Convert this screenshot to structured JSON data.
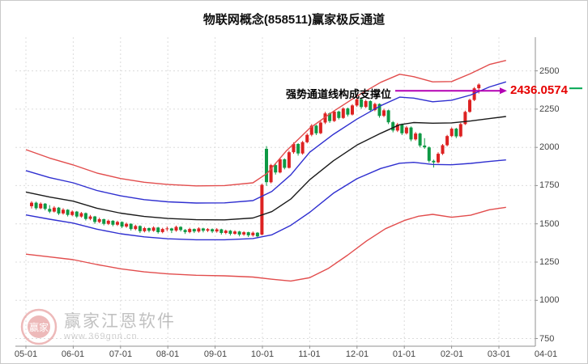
{
  "title": "物联网概念(858511)赢家极反通道",
  "annotation": {
    "text": "强势通道线构成支撑位",
    "value": "2436.0574",
    "level": 2370
  },
  "watermark": {
    "name": "赢家江恩软件",
    "url": "www.369gnn.cn",
    "logo_text": "赢家"
  },
  "colors": {
    "candle_up": "#dd2222",
    "candle_down": "#0e9944",
    "grid": "#dcdcdc",
    "axis": "#909090",
    "arrow": "#b300b3",
    "value_label": "#e60000",
    "marker_green": "#00a651",
    "channel_red": "#e24d4d",
    "channel_blue": "#2f2fd0",
    "channel_black": "#1a1a1a"
  },
  "chart_data": {
    "type": "candlestick",
    "title": "物联网概念(858511)赢家极反通道",
    "x_ticks": [
      "05-01",
      "06-01",
      "07-01",
      "08-01",
      "09-01",
      "10-01",
      "11-01",
      "12-01",
      "01-01",
      "02-01",
      "03-01",
      "04-01"
    ],
    "y_ticks": [
      2500,
      2250,
      2000,
      1750,
      1500,
      1250,
      1000,
      750
    ],
    "ylim": [
      700,
      2720
    ],
    "grid": true,
    "x_start": 0.12,
    "x_step": 0.0955,
    "candles": [
      [
        1615,
        1648,
        1600,
        1638
      ],
      [
        1638,
        1645,
        1592,
        1602
      ],
      [
        1602,
        1640,
        1596,
        1632
      ],
      [
        1632,
        1636,
        1588,
        1598
      ],
      [
        1598,
        1622,
        1570,
        1580
      ],
      [
        1580,
        1616,
        1574,
        1606
      ],
      [
        1606,
        1610,
        1558,
        1568
      ],
      [
        1568,
        1602,
        1560,
        1592
      ],
      [
        1592,
        1596,
        1548,
        1558
      ],
      [
        1558,
        1588,
        1550,
        1580
      ],
      [
        1580,
        1584,
        1538,
        1548
      ],
      [
        1548,
        1578,
        1540,
        1570
      ],
      [
        1570,
        1574,
        1522,
        1532
      ],
      [
        1532,
        1558,
        1524,
        1548
      ],
      [
        1548,
        1552,
        1500,
        1512
      ],
      [
        1512,
        1540,
        1504,
        1530
      ],
      [
        1530,
        1534,
        1490,
        1500
      ],
      [
        1500,
        1528,
        1492,
        1520
      ],
      [
        1520,
        1524,
        1484,
        1494
      ],
      [
        1494,
        1520,
        1486,
        1512
      ],
      [
        1512,
        1516,
        1472,
        1482
      ],
      [
        1482,
        1508,
        1474,
        1500
      ],
      [
        1500,
        1504,
        1456,
        1466
      ],
      [
        1466,
        1494,
        1458,
        1486
      ],
      [
        1486,
        1490,
        1440,
        1452
      ],
      [
        1452,
        1480,
        1444,
        1472
      ],
      [
        1472,
        1476,
        1444,
        1455
      ],
      [
        1455,
        1484,
        1448,
        1476
      ],
      [
        1476,
        1480,
        1436,
        1446
      ],
      [
        1446,
        1474,
        1438,
        1466
      ],
      [
        1466,
        1482,
        1452,
        1470
      ],
      [
        1470,
        1474,
        1440,
        1456
      ],
      [
        1456,
        1488,
        1448,
        1480
      ],
      [
        1480,
        1484,
        1450,
        1460
      ],
      [
        1460,
        1466,
        1434,
        1446
      ],
      [
        1446,
        1474,
        1438,
        1466
      ],
      [
        1466,
        1470,
        1440,
        1450
      ],
      [
        1450,
        1478,
        1442,
        1470
      ],
      [
        1470,
        1474,
        1444,
        1455
      ],
      [
        1455,
        1472,
        1446,
        1465
      ],
      [
        1465,
        1470,
        1440,
        1450
      ],
      [
        1450,
        1472,
        1442,
        1464
      ],
      [
        1464,
        1468,
        1430,
        1440
      ],
      [
        1440,
        1462,
        1432,
        1455
      ],
      [
        1455,
        1460,
        1424,
        1435
      ],
      [
        1435,
        1458,
        1428,
        1450
      ],
      [
        1450,
        1454,
        1418,
        1430
      ],
      [
        1430,
        1452,
        1422,
        1445
      ],
      [
        1445,
        1448,
        1414,
        1425
      ],
      [
        1425,
        1450,
        1416,
        1442
      ],
      [
        1442,
        1446,
        1408,
        1418
      ],
      [
        1430,
        1762,
        1425,
        1755
      ],
      [
        1990,
        2008,
        1748,
        1772
      ],
      [
        1772,
        1892,
        1765,
        1884
      ],
      [
        1884,
        1896,
        1822,
        1836
      ],
      [
        1836,
        1932,
        1830,
        1922
      ],
      [
        1922,
        1928,
        1856,
        1866
      ],
      [
        1866,
        1978,
        1862,
        1968
      ],
      [
        1968,
        2032,
        1958,
        2022
      ],
      [
        2022,
        2028,
        1946,
        1960
      ],
      [
        1960,
        2042,
        1952,
        2034
      ],
      [
        2034,
        2092,
        2026,
        2082
      ],
      [
        2082,
        2152,
        2072,
        2142
      ],
      [
        2142,
        2148,
        2080,
        2092
      ],
      [
        2092,
        2172,
        2086,
        2162
      ],
      [
        2162,
        2232,
        2152,
        2222
      ],
      [
        2222,
        2228,
        2160,
        2172
      ],
      [
        2172,
        2242,
        2166,
        2234
      ],
      [
        2234,
        2240,
        2182,
        2192
      ],
      [
        2192,
        2262,
        2186,
        2254
      ],
      [
        2254,
        2260,
        2202,
        2214
      ],
      [
        2214,
        2282,
        2208,
        2274
      ],
      [
        2274,
        2322,
        2266,
        2314
      ],
      [
        2314,
        2320,
        2252,
        2264
      ],
      [
        2264,
        2312,
        2256,
        2302
      ],
      [
        2302,
        2308,
        2232,
        2244
      ],
      [
        2244,
        2292,
        2236,
        2284
      ],
      [
        2284,
        2288,
        2194,
        2206
      ],
      [
        2206,
        2252,
        2198,
        2242
      ],
      [
        2242,
        2246,
        2152,
        2164
      ],
      [
        2164,
        2172,
        2098,
        2110
      ],
      [
        2110,
        2160,
        2100,
        2150
      ],
      [
        2150,
        2156,
        2080,
        2092
      ],
      [
        2092,
        2140,
        2084,
        2130
      ],
      [
        2130,
        2136,
        2040,
        2052
      ],
      [
        2052,
        2100,
        2044,
        2090
      ],
      [
        2090,
        2096,
        2000,
        2012
      ],
      [
        2012,
        2060,
        1990,
        2000
      ],
      [
        2000,
        2006,
        1900,
        1912
      ],
      [
        1912,
        1920,
        1868,
        1902
      ],
      [
        1902,
        1968,
        1896,
        1958
      ],
      [
        1958,
        2022,
        1950,
        2014
      ],
      [
        2014,
        2082,
        2006,
        2074
      ],
      [
        2074,
        2130,
        2066,
        2122
      ],
      [
        2122,
        2128,
        2060,
        2072
      ],
      [
        2072,
        2160,
        2066,
        2152
      ],
      [
        2152,
        2240,
        2146,
        2232
      ],
      [
        2232,
        2318,
        2226,
        2310
      ],
      [
        2310,
        2394,
        2302,
        2386
      ],
      [
        2386,
        2418,
        2352,
        2410
      ]
    ],
    "channel_lines": [
      {
        "name": "upper-rail-red",
        "color": "#e24d4d",
        "points": [
          [
            0,
            1985
          ],
          [
            0.5,
            1930
          ],
          [
            1,
            1885
          ],
          [
            1.5,
            1832
          ],
          [
            2,
            1796
          ],
          [
            2.5,
            1772
          ],
          [
            3,
            1757
          ],
          [
            3.6,
            1748
          ],
          [
            4.2,
            1750
          ],
          [
            4.8,
            1768
          ],
          [
            5.1,
            1830
          ],
          [
            5.5,
            1975
          ],
          [
            6,
            2125
          ],
          [
            6.5,
            2235
          ],
          [
            7,
            2335
          ],
          [
            7.5,
            2425
          ],
          [
            7.9,
            2478
          ],
          [
            8.2,
            2462
          ],
          [
            8.6,
            2428
          ],
          [
            9,
            2430
          ],
          [
            9.4,
            2482
          ],
          [
            9.8,
            2542
          ],
          [
            10.15,
            2568
          ]
        ]
      },
      {
        "name": "strong-line-blue",
        "color": "#2f2fd0",
        "points": [
          [
            0,
            1848
          ],
          [
            0.5,
            1802
          ],
          [
            1,
            1768
          ],
          [
            1.5,
            1718
          ],
          [
            2,
            1683
          ],
          [
            2.5,
            1658
          ],
          [
            3,
            1644
          ],
          [
            3.6,
            1636
          ],
          [
            4.2,
            1637
          ],
          [
            4.8,
            1652
          ],
          [
            5.2,
            1712
          ],
          [
            5.6,
            1820
          ],
          [
            6,
            1968
          ],
          [
            6.5,
            2085
          ],
          [
            7,
            2185
          ],
          [
            7.5,
            2272
          ],
          [
            7.9,
            2328
          ],
          [
            8.2,
            2322
          ],
          [
            8.6,
            2298
          ],
          [
            9,
            2308
          ],
          [
            9.4,
            2342
          ],
          [
            9.8,
            2395
          ],
          [
            10.15,
            2428
          ]
        ]
      },
      {
        "name": "life-line-black",
        "color": "#1a1a1a",
        "points": [
          [
            0,
            1708
          ],
          [
            0.5,
            1675
          ],
          [
            1,
            1648
          ],
          [
            1.5,
            1602
          ],
          [
            2,
            1570
          ],
          [
            2.5,
            1548
          ],
          [
            3,
            1535
          ],
          [
            3.6,
            1527
          ],
          [
            4.2,
            1526
          ],
          [
            4.8,
            1538
          ],
          [
            5.2,
            1580
          ],
          [
            5.6,
            1662
          ],
          [
            6,
            1788
          ],
          [
            6.5,
            1912
          ],
          [
            7,
            2015
          ],
          [
            7.5,
            2092
          ],
          [
            7.9,
            2148
          ],
          [
            8.2,
            2162
          ],
          [
            8.6,
            2158
          ],
          [
            9,
            2160
          ],
          [
            9.4,
            2172
          ],
          [
            9.8,
            2188
          ],
          [
            10.15,
            2202
          ]
        ]
      },
      {
        "name": "weak-line-blue",
        "color": "#2f2fd0",
        "points": [
          [
            0,
            1558
          ],
          [
            0.5,
            1530
          ],
          [
            1,
            1505
          ],
          [
            1.5,
            1465
          ],
          [
            2,
            1435
          ],
          [
            2.5,
            1415
          ],
          [
            3,
            1402
          ],
          [
            3.6,
            1396
          ],
          [
            4.2,
            1396
          ],
          [
            4.8,
            1404
          ],
          [
            5.2,
            1428
          ],
          [
            5.6,
            1490
          ],
          [
            6,
            1575
          ],
          [
            6.5,
            1700
          ],
          [
            7,
            1795
          ],
          [
            7.5,
            1862
          ],
          [
            7.9,
            1896
          ],
          [
            8.2,
            1902
          ],
          [
            8.6,
            1888
          ],
          [
            9,
            1886
          ],
          [
            9.4,
            1895
          ],
          [
            9.8,
            1908
          ],
          [
            10.15,
            1918
          ]
        ]
      },
      {
        "name": "lower-rail-red",
        "color": "#e24d4d",
        "points": [
          [
            0,
            1302
          ],
          [
            0.5,
            1284
          ],
          [
            1,
            1266
          ],
          [
            1.5,
            1234
          ],
          [
            2,
            1206
          ],
          [
            2.5,
            1186
          ],
          [
            3,
            1173
          ],
          [
            3.6,
            1164
          ],
          [
            4.2,
            1160
          ],
          [
            4.8,
            1152
          ],
          [
            5.2,
            1138
          ],
          [
            5.6,
            1126
          ],
          [
            6,
            1148
          ],
          [
            6.4,
            1210
          ],
          [
            6.8,
            1295
          ],
          [
            7.2,
            1388
          ],
          [
            7.6,
            1468
          ],
          [
            8,
            1522
          ],
          [
            8.3,
            1550
          ],
          [
            8.6,
            1562
          ],
          [
            9,
            1543
          ],
          [
            9.4,
            1556
          ],
          [
            9.8,
            1592
          ],
          [
            10.15,
            1608
          ]
        ]
      }
    ],
    "legend": null,
    "xlabel": "",
    "ylabel": ""
  }
}
